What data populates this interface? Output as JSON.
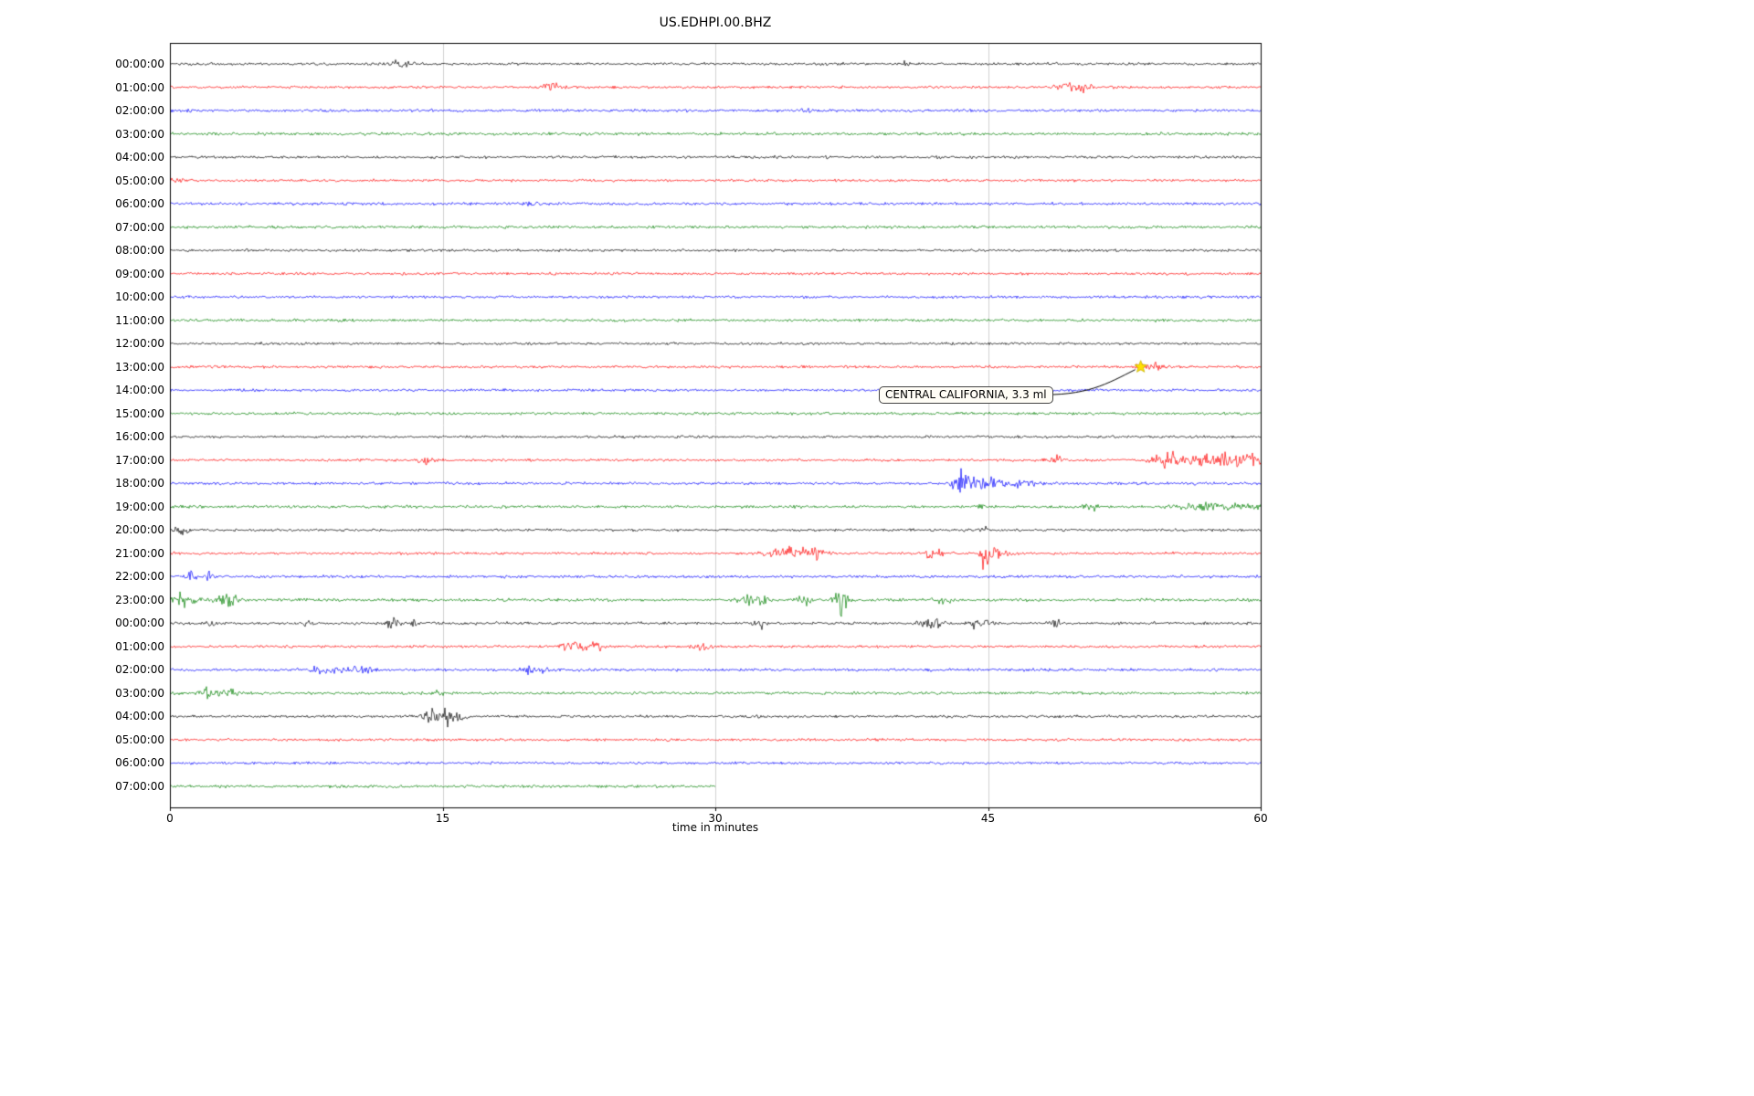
{
  "title": "US.EDHPI.00.BHZ",
  "chart_data": {
    "type": "line",
    "subtype": "seismogram-helicorder",
    "station": "US.EDHPI.00.BHZ",
    "xlabel": "time in minutes",
    "xlim": [
      0,
      60
    ],
    "xticks": [
      0,
      15,
      30,
      45,
      60
    ],
    "xtick_labels": [
      "0",
      "15",
      "30",
      "45",
      "60"
    ],
    "grid": "vertical gridlines at 15, 30, 45 minutes",
    "colors_cycle": [
      "#000000",
      "#ff0000",
      "#0000ff",
      "#008000"
    ],
    "annotation": {
      "text": "CENTRAL CALIFORNIA, 3.3 ml",
      "row_label": "13:00:00",
      "t_minutes": 53.4,
      "marker": "yellow-star",
      "marker_color": "#ffe000"
    },
    "rows": [
      {
        "label": "00:00:00",
        "color": "#000000",
        "duration": 60,
        "noise": 1.5,
        "events": [
          {
            "t": 12.7,
            "a": 4,
            "w": 0.3
          },
          {
            "t": 13.3,
            "a": 3,
            "w": 0.2
          },
          {
            "t": 40.5,
            "a": 6,
            "w": 0.08
          }
        ]
      },
      {
        "label": "01:00:00",
        "color": "#ff0000",
        "duration": 60,
        "noise": 1.5,
        "events": [
          {
            "t": 21.0,
            "a": 6,
            "w": 0.35
          },
          {
            "t": 49.3,
            "a": 9,
            "w": 0.3
          },
          {
            "t": 50.3,
            "a": 7,
            "w": 0.25
          }
        ]
      },
      {
        "label": "02:00:00",
        "color": "#0000ff",
        "duration": 60,
        "noise": 1.6,
        "events": [
          {
            "t": 35.2,
            "a": 2,
            "w": 0.3
          }
        ]
      },
      {
        "label": "03:00:00",
        "color": "#008000",
        "duration": 60,
        "noise": 1.7,
        "events": []
      },
      {
        "label": "04:00:00",
        "color": "#000000",
        "duration": 60,
        "noise": 1.5,
        "events": []
      },
      {
        "label": "05:00:00",
        "color": "#ff0000",
        "duration": 60,
        "noise": 1.5,
        "events": [
          {
            "t": 0.3,
            "a": 3,
            "w": 0.3
          }
        ]
      },
      {
        "label": "06:00:00",
        "color": "#0000ff",
        "duration": 60,
        "noise": 1.6,
        "events": [
          {
            "t": 19.8,
            "a": 2.5,
            "w": 0.3
          }
        ]
      },
      {
        "label": "07:00:00",
        "color": "#008000",
        "duration": 60,
        "noise": 1.6,
        "events": []
      },
      {
        "label": "08:00:00",
        "color": "#000000",
        "duration": 60,
        "noise": 1.5,
        "events": []
      },
      {
        "label": "09:00:00",
        "color": "#ff0000",
        "duration": 60,
        "noise": 1.5,
        "events": []
      },
      {
        "label": "10:00:00",
        "color": "#0000ff",
        "duration": 60,
        "noise": 1.5,
        "events": []
      },
      {
        "label": "11:00:00",
        "color": "#008000",
        "duration": 60,
        "noise": 1.6,
        "events": []
      },
      {
        "label": "12:00:00",
        "color": "#000000",
        "duration": 60,
        "noise": 1.5,
        "events": []
      },
      {
        "label": "13:00:00",
        "color": "#ff0000",
        "duration": 60,
        "noise": 1.5,
        "events": [
          {
            "t": 53.4,
            "a": 3,
            "w": 0.3
          },
          {
            "t": 54.3,
            "a": 3.5,
            "w": 0.6
          }
        ]
      },
      {
        "label": "14:00:00",
        "color": "#0000ff",
        "duration": 60,
        "noise": 1.5,
        "events": []
      },
      {
        "label": "15:00:00",
        "color": "#008000",
        "duration": 60,
        "noise": 1.6,
        "events": []
      },
      {
        "label": "16:00:00",
        "color": "#000000",
        "duration": 60,
        "noise": 1.5,
        "events": []
      },
      {
        "label": "17:00:00",
        "color": "#ff0000",
        "duration": 60,
        "noise": 1.5,
        "events": [
          {
            "t": 14.1,
            "a": 8,
            "w": 0.25
          },
          {
            "t": 48.8,
            "a": 5,
            "w": 0.3
          },
          {
            "t": 54.8,
            "a": 7,
            "w": 0.5
          },
          {
            "t": 57.0,
            "a": 6,
            "w": 1.2
          },
          {
            "t": 59.2,
            "a": 6,
            "w": 0.8
          }
        ]
      },
      {
        "label": "18:00:00",
        "color": "#0000ff",
        "duration": 60,
        "noise": 1.6,
        "events": [
          {
            "t": 43.6,
            "a": 12,
            "w": 0.35
          },
          {
            "t": 44.5,
            "a": 8,
            "w": 0.5
          },
          {
            "t": 46.0,
            "a": 4,
            "w": 1.0
          }
        ]
      },
      {
        "label": "19:00:00",
        "color": "#008000",
        "duration": 60,
        "noise": 1.6,
        "events": [
          {
            "t": 44.7,
            "a": 10,
            "w": 0.12
          },
          {
            "t": 50.7,
            "a": 5,
            "w": 0.3
          },
          {
            "t": 57.5,
            "a": 4,
            "w": 1.5
          }
        ]
      },
      {
        "label": "20:00:00",
        "color": "#000000",
        "duration": 60,
        "noise": 1.5,
        "events": [
          {
            "t": 0.6,
            "a": 4,
            "w": 0.3
          },
          {
            "t": 44.8,
            "a": 3,
            "w": 0.2
          }
        ]
      },
      {
        "label": "21:00:00",
        "color": "#ff0000",
        "duration": 60,
        "noise": 1.5,
        "events": [
          {
            "t": 34.0,
            "a": 6,
            "w": 0.8
          },
          {
            "t": 35.5,
            "a": 5,
            "w": 0.4
          },
          {
            "t": 42.0,
            "a": 6,
            "w": 0.3
          },
          {
            "t": 44.8,
            "a": 22,
            "w": 0.15
          },
          {
            "t": 45.5,
            "a": 7,
            "w": 0.4
          }
        ]
      },
      {
        "label": "22:00:00",
        "color": "#0000ff",
        "duration": 60,
        "noise": 1.6,
        "events": [
          {
            "t": 1.2,
            "a": 10,
            "w": 0.12
          },
          {
            "t": 2.2,
            "a": 5,
            "w": 0.15
          }
        ]
      },
      {
        "label": "23:00:00",
        "color": "#008000",
        "duration": 60,
        "noise": 1.7,
        "events": [
          {
            "t": 0.8,
            "a": 9,
            "w": 0.4
          },
          {
            "t": 3.2,
            "a": 8,
            "w": 0.4
          },
          {
            "t": 32.2,
            "a": 6,
            "w": 0.5
          },
          {
            "t": 34.9,
            "a": 7,
            "w": 0.3
          },
          {
            "t": 36.9,
            "a": 14,
            "w": 0.25
          },
          {
            "t": 42.5,
            "a": 4,
            "w": 0.3
          }
        ]
      },
      {
        "label": "00:00:00",
        "color": "#000000",
        "duration": 60,
        "noise": 1.6,
        "events": [
          {
            "t": 2.2,
            "a": 5,
            "w": 0.2
          },
          {
            "t": 7.5,
            "a": 10,
            "w": 0.08
          },
          {
            "t": 12.2,
            "a": 6,
            "w": 0.3
          },
          {
            "t": 13.5,
            "a": 6,
            "w": 0.2
          },
          {
            "t": 32.5,
            "a": 4,
            "w": 0.3
          },
          {
            "t": 42.0,
            "a": 5,
            "w": 0.5
          },
          {
            "t": 44.5,
            "a": 6,
            "w": 0.4
          },
          {
            "t": 48.7,
            "a": 10,
            "w": 0.12
          }
        ]
      },
      {
        "label": "01:00:00",
        "color": "#ff0000",
        "duration": 60,
        "noise": 1.5,
        "events": [
          {
            "t": 22.2,
            "a": 6,
            "w": 0.5
          },
          {
            "t": 23.5,
            "a": 5,
            "w": 0.3
          },
          {
            "t": 29.3,
            "a": 5,
            "w": 0.3
          }
        ]
      },
      {
        "label": "02:00:00",
        "color": "#0000ff",
        "duration": 60,
        "noise": 1.6,
        "events": [
          {
            "t": 8.5,
            "a": 4,
            "w": 0.6
          },
          {
            "t": 10.5,
            "a": 4,
            "w": 0.5
          },
          {
            "t": 19.8,
            "a": 4,
            "w": 0.6
          }
        ]
      },
      {
        "label": "03:00:00",
        "color": "#008000",
        "duration": 60,
        "noise": 1.6,
        "events": [
          {
            "t": 2.2,
            "a": 5,
            "w": 0.5
          },
          {
            "t": 3.5,
            "a": 4,
            "w": 0.3
          },
          {
            "t": 14.8,
            "a": 2.5,
            "w": 0.2
          }
        ]
      },
      {
        "label": "04:00:00",
        "color": "#000000",
        "duration": 60,
        "noise": 1.5,
        "events": [
          {
            "t": 14.3,
            "a": 7,
            "w": 0.4
          },
          {
            "t": 15.2,
            "a": 14,
            "w": 0.12
          },
          {
            "t": 15.8,
            "a": 6,
            "w": 0.3
          }
        ]
      },
      {
        "label": "05:00:00",
        "color": "#ff0000",
        "duration": 60,
        "noise": 1.5,
        "events": []
      },
      {
        "label": "06:00:00",
        "color": "#0000ff",
        "duration": 60,
        "noise": 1.5,
        "events": []
      },
      {
        "label": "07:00:00",
        "color": "#008000",
        "duration": 30,
        "noise": 1.6,
        "events": []
      }
    ]
  }
}
